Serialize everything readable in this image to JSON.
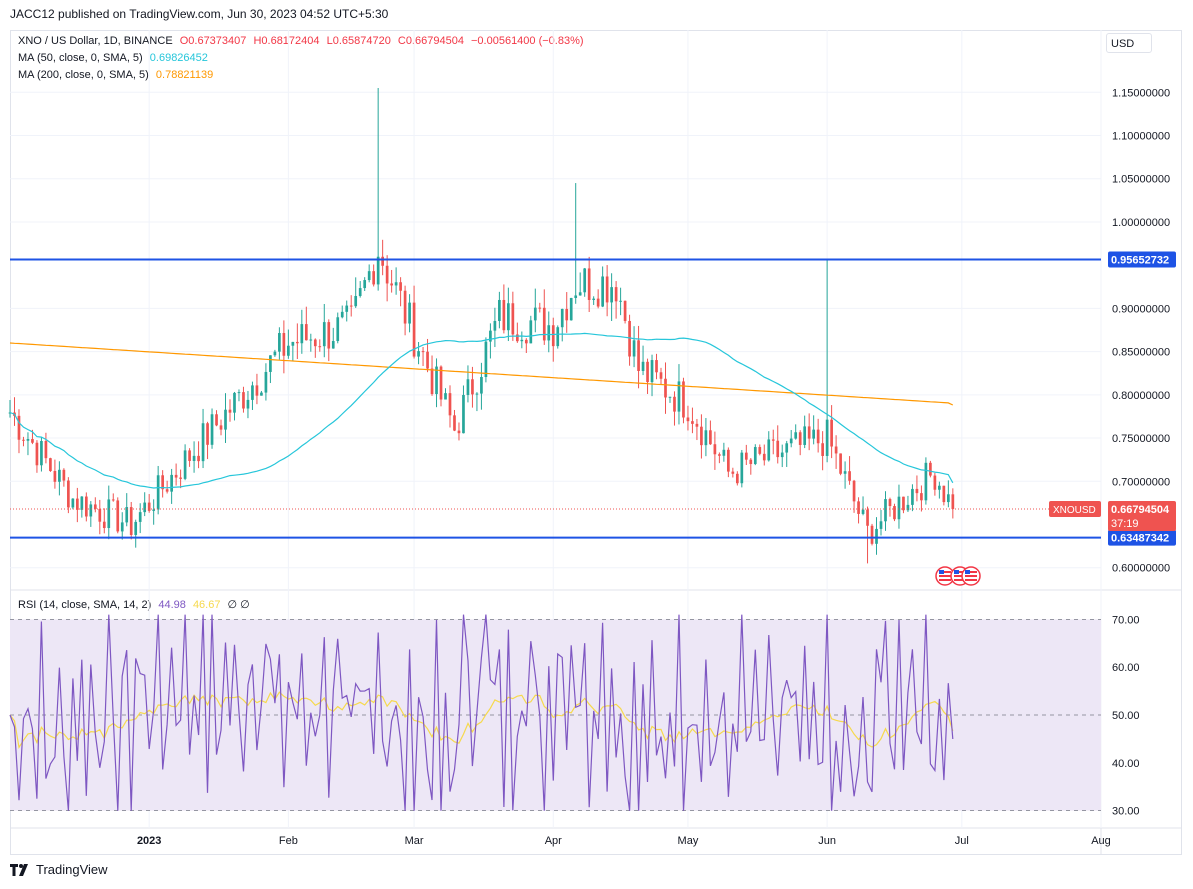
{
  "header": {
    "published": "JACC12 published on TradingView.com, Jun 30, 2023 04:52 UTC+5:30"
  },
  "legend": {
    "title": "XNO / US Dollar, 1D, BINANCE",
    "ohlc": [
      "O0.67373407",
      "H0.68172404",
      "L0.65874720",
      "C0.66794504",
      "−0.00561400 (−0.83%)"
    ],
    "ma50_label": "MA (50, close, 0, SMA, 5)",
    "ma50_value": "0.69826452",
    "ma200_label": "MA (200, close, 0, SMA, 5)",
    "ma200_value": "0.78821139",
    "rsi_label": "RSI (14, close, SMA, 14, 2)",
    "rsi_value": "44.98",
    "rsi_ma_value": "46.67",
    "rsi_extra": "∅ ∅"
  },
  "currency": "USD",
  "footer": {
    "brand": "TradingView"
  },
  "colors": {
    "up": "#26a69a",
    "down": "#ef5350",
    "ma50": "#26c6da",
    "ma200": "#ff9800",
    "level": "#1e53e5",
    "rsi": "#7e57c2",
    "rsi_ma": "#f6d94d",
    "rsi_band": "#ede7f6"
  },
  "chart_data": {
    "type": "candlestick",
    "price_axis": {
      "ticks": [
        "1.15000000",
        "1.10000000",
        "1.05000000",
        "1.00000000",
        "0.90000000",
        "0.85000000",
        "0.80000000",
        "0.75000000",
        "0.70000000",
        "0.60000000"
      ],
      "tick_values": [
        1.15,
        1.1,
        1.05,
        1.0,
        0.9,
        0.85,
        0.8,
        0.75,
        0.7,
        0.6
      ],
      "range": [
        0.58,
        1.17
      ]
    },
    "x_axis": {
      "labels": [
        "2023",
        "Feb",
        "Mar",
        "Apr",
        "May",
        "Jun",
        "Jul",
        "Aug"
      ]
    },
    "horizontal_levels": [
      {
        "value": 0.95652732,
        "label": "0.95652732"
      },
      {
        "value": 0.63487342,
        "label": "0.63487342"
      }
    ],
    "last_price": {
      "symbol": "XNOUSD",
      "value": 0.66794504,
      "label": "0.66794504",
      "countdown": "37:19"
    },
    "key_price_points": [
      {
        "date": "2022-12-01",
        "close": 0.78
      },
      {
        "date": "2022-12-15",
        "close": 0.68
      },
      {
        "date": "2022-12-28",
        "close": 0.65
      },
      {
        "date": "2023-01-10",
        "close": 0.73
      },
      {
        "date": "2023-01-20",
        "close": 0.79
      },
      {
        "date": "2023-02-01",
        "close": 0.86
      },
      {
        "date": "2023-02-15",
        "close": 0.88
      },
      {
        "date": "2023-02-21",
        "close": 0.97,
        "high": 1.155
      },
      {
        "date": "2023-03-01",
        "close": 0.87
      },
      {
        "date": "2023-03-10",
        "close": 0.76
      },
      {
        "date": "2023-03-20",
        "close": 0.89
      },
      {
        "date": "2023-04-01",
        "close": 0.88
      },
      {
        "date": "2023-04-06",
        "close": 0.93,
        "high": 1.045
      },
      {
        "date": "2023-04-15",
        "close": 0.93
      },
      {
        "date": "2023-04-20",
        "close": 0.83
      },
      {
        "date": "2023-05-01",
        "close": 0.79
      },
      {
        "date": "2023-05-10",
        "close": 0.71
      },
      {
        "date": "2023-05-20",
        "close": 0.73
      },
      {
        "date": "2023-06-01",
        "close": 0.75,
        "high": 0.956
      },
      {
        "date": "2023-06-10",
        "close": 0.64,
        "low": 0.605
      },
      {
        "date": "2023-06-20",
        "close": 0.69
      },
      {
        "date": "2023-06-25",
        "close": 0.71
      },
      {
        "date": "2023-06-29",
        "close": 0.668
      }
    ],
    "rsi_panel": {
      "ticks": [
        "70.00",
        "60.00",
        "50.00",
        "40.00",
        "30.00"
      ],
      "tick_values": [
        70,
        60,
        50,
        40,
        30
      ],
      "range": [
        27,
        73
      ],
      "band": [
        30,
        70
      ]
    }
  }
}
